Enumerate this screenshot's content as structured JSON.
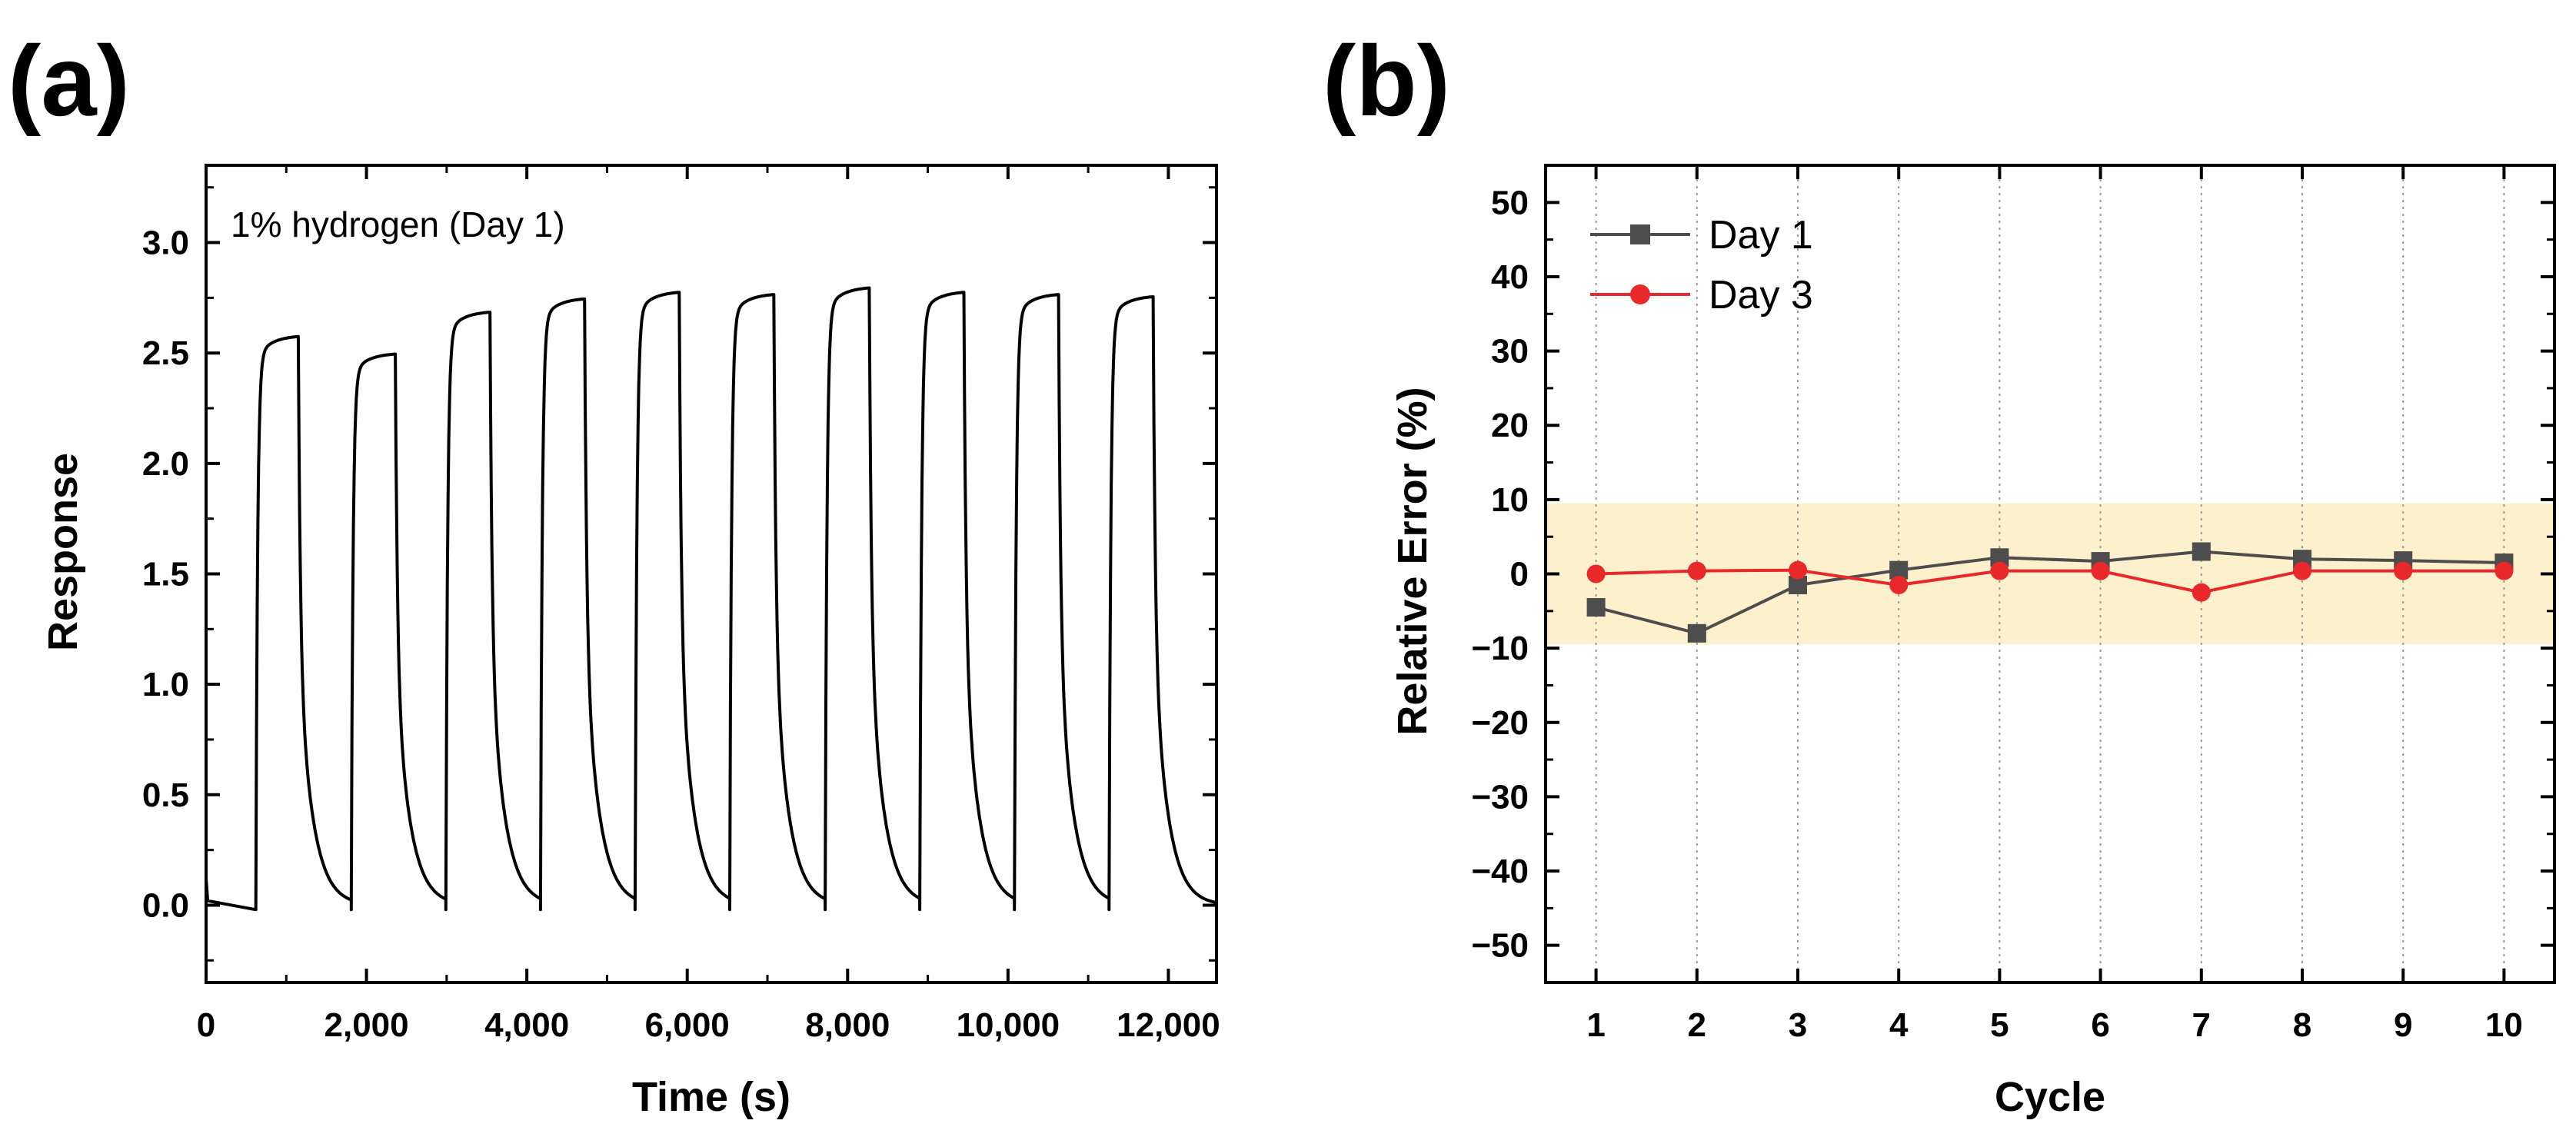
{
  "figure": {
    "panel_a_label": "(a)",
    "panel_b_label": "(b)"
  },
  "chart_data": [
    {
      "id": "a",
      "type": "line",
      "title": "",
      "annotation": "1% hydrogen (Day 1)",
      "xlabel": "Time (s)",
      "ylabel": "Response",
      "xlim": [
        0,
        12600
      ],
      "ylim": [
        -0.35,
        3.35
      ],
      "xticks": [
        0,
        2000,
        4000,
        6000,
        8000,
        10000,
        12000
      ],
      "xtick_labels": [
        "0",
        "2,000",
        "4,000",
        "6,000",
        "8,000",
        "10,000",
        "12,000"
      ],
      "yticks": [
        0.0,
        0.5,
        1.0,
        1.5,
        2.0,
        2.5,
        3.0
      ],
      "ytick_labels": [
        "0.0",
        "0.5",
        "1.0",
        "1.5",
        "2.0",
        "2.5",
        "3.0"
      ],
      "line_color": "#000000",
      "baseline_start": 0.02,
      "cycles": [
        {
          "t_on": 620,
          "t_off": 1150,
          "plateau": 2.58
        },
        {
          "t_on": 1810,
          "t_off": 2360,
          "plateau": 2.5
        },
        {
          "t_on": 2990,
          "t_off": 3540,
          "plateau": 2.69
        },
        {
          "t_on": 4170,
          "t_off": 4720,
          "plateau": 2.75
        },
        {
          "t_on": 5350,
          "t_off": 5900,
          "plateau": 2.78
        },
        {
          "t_on": 6530,
          "t_off": 7080,
          "plateau": 2.77
        },
        {
          "t_on": 7720,
          "t_off": 8270,
          "plateau": 2.8
        },
        {
          "t_on": 8900,
          "t_off": 9450,
          "plateau": 2.78
        },
        {
          "t_on": 10080,
          "t_off": 10630,
          "plateau": 2.77
        },
        {
          "t_on": 11260,
          "t_off": 11810,
          "plateau": 2.76
        }
      ]
    },
    {
      "id": "b",
      "type": "line",
      "title": "",
      "xlabel": "Cycle",
      "ylabel": "Relative Error (%)",
      "xlim": [
        0.5,
        10.5
      ],
      "ylim": [
        -55,
        55
      ],
      "xticks": [
        1,
        2,
        3,
        4,
        5,
        6,
        7,
        8,
        9,
        10
      ],
      "xtick_labels": [
        "1",
        "2",
        "3",
        "4",
        "5",
        "6",
        "7",
        "8",
        "9",
        "10"
      ],
      "yticks": [
        -50,
        -40,
        -30,
        -20,
        -10,
        0,
        10,
        20,
        30,
        40,
        50
      ],
      "ytick_labels": [
        "−50",
        "−40",
        "−30",
        "−20",
        "−10",
        "0",
        "10",
        "20",
        "30",
        "40",
        "50"
      ],
      "band": {
        "y_min": -9.5,
        "y_max": 9.5,
        "color": "#fdf0cd"
      },
      "grid": "vertical dotted",
      "legend_position": "top-left",
      "series": [
        {
          "name": "Day 1",
          "color": "#4d4d4d",
          "marker": "square",
          "x": [
            1,
            2,
            3,
            4,
            5,
            6,
            7,
            8,
            9,
            10
          ],
          "values": [
            -4.5,
            -8.0,
            -1.5,
            0.5,
            2.2,
            1.7,
            3.0,
            2.0,
            1.8,
            1.5
          ]
        },
        {
          "name": "Day 3",
          "color": "#e8282b",
          "marker": "circle",
          "x": [
            1,
            2,
            3,
            4,
            5,
            6,
            7,
            8,
            9,
            10
          ],
          "values": [
            0.0,
            0.4,
            0.5,
            -1.5,
            0.4,
            0.4,
            -2.5,
            0.4,
            0.4,
            0.4
          ]
        }
      ]
    }
  ]
}
